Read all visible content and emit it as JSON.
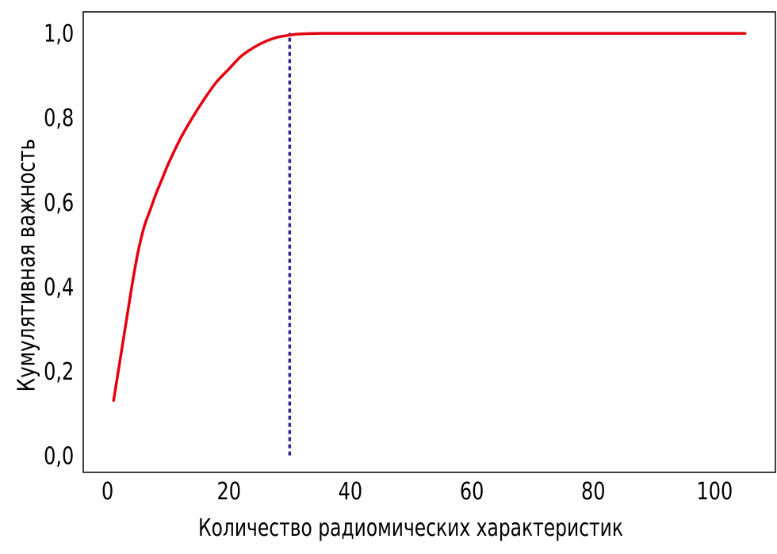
{
  "chart_data": {
    "type": "line",
    "title": "",
    "xlabel": "Количество радиомических характеристик",
    "ylabel": "Кумулятивная важность",
    "xlim": [
      -4,
      110
    ],
    "ylim": [
      -0.04,
      1.05
    ],
    "x_ticks": [
      0,
      20,
      40,
      60,
      80,
      100
    ],
    "x_tick_labels": [
      "0",
      "20",
      "40",
      "60",
      "80",
      "100"
    ],
    "y_ticks": [
      0.0,
      0.2,
      0.4,
      0.6,
      0.8,
      1.0
    ],
    "y_tick_labels": [
      "0,0",
      "0,2",
      "0,4",
      "0,6",
      "0,8",
      "1,0"
    ],
    "grid": false,
    "legend": "none",
    "series": [
      {
        "color": "#e3000f",
        "style": "solid",
        "x": [
          1,
          2,
          3,
          4,
          5,
          6,
          7,
          8,
          9,
          10,
          12,
          14,
          16,
          18,
          20,
          22,
          24,
          26,
          28,
          30,
          31,
          32,
          35,
          40,
          45,
          50,
          60,
          70,
          80,
          90,
          100,
          105
        ],
        "y": [
          0.13,
          0.22,
          0.31,
          0.4,
          0.48,
          0.54,
          0.58,
          0.62,
          0.655,
          0.69,
          0.75,
          0.8,
          0.845,
          0.885,
          0.915,
          0.945,
          0.965,
          0.98,
          0.99,
          0.995,
          0.997,
          0.998,
          0.999,
          0.999,
          0.999,
          0.999,
          0.999,
          0.999,
          0.999,
          0.999,
          0.999,
          0.999
        ]
      }
    ],
    "vlines": [
      {
        "x": 30,
        "y_from": 0.0,
        "y_to": 1.0,
        "color": "#2b2a8c",
        "style": "dotted"
      }
    ]
  }
}
